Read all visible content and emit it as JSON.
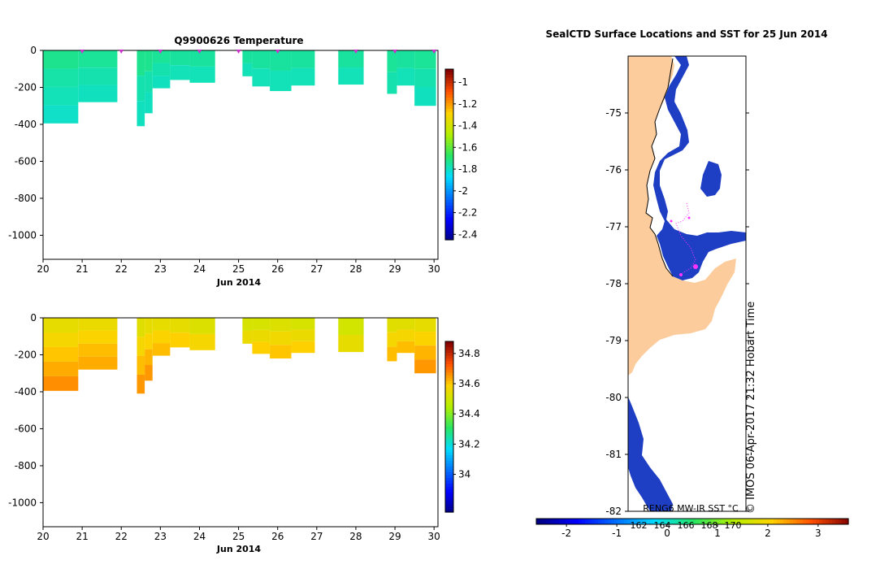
{
  "chart_data": [
    {
      "type": "heatmap",
      "title": "Q9900626  Temperature",
      "xlabel": "Jun 2014",
      "ylabel": "",
      "xlim": [
        20,
        30.1
      ],
      "ylim": [
        -1130,
        0
      ],
      "x_ticks": [
        "20",
        "21",
        "22",
        "23",
        "24",
        "25",
        "26",
        "27",
        "28",
        "29",
        "30"
      ],
      "y_ticks": [
        "0",
        "-200",
        "-400",
        "-600",
        "-800",
        "-1000"
      ],
      "colorbar": {
        "min": -2.45,
        "max": -0.88,
        "ticks": [
          "-1",
          "-1.2",
          "-1.4",
          "-1.6",
          "-1.8",
          "-2",
          "-2.2",
          "-2.4"
        ],
        "tick_values": [
          -1,
          -1.2,
          -1.4,
          -1.6,
          -1.8,
          -2,
          -2.2,
          -2.4
        ]
      },
      "profile_markers_day": [
        21.0,
        22.0,
        23.0,
        24.0,
        25.0,
        26.0,
        28.0,
        29.0,
        30.0
      ],
      "profiles": [
        {
          "x0": 20.0,
          "x1": 20.9,
          "depth": 395,
          "values": [
            -1.72,
            -1.75,
            -1.77,
            -1.79
          ]
        },
        {
          "x0": 20.9,
          "x1": 21.9,
          "depth": 280,
          "values": [
            -1.73,
            -1.76,
            -1.78
          ]
        },
        {
          "x0": 22.4,
          "x1": 22.6,
          "depth": 410,
          "values": [
            -1.72,
            -1.76,
            -1.78
          ]
        },
        {
          "x0": 22.6,
          "x1": 22.8,
          "depth": 340,
          "values": [
            -1.72,
            -1.76,
            -1.78
          ]
        },
        {
          "x0": 22.8,
          "x1": 23.25,
          "depth": 205,
          "values": [
            -1.73,
            -1.76,
            -1.78
          ]
        },
        {
          "x0": 23.25,
          "x1": 23.75,
          "depth": 160,
          "values": [
            -1.74,
            -1.77
          ]
        },
        {
          "x0": 23.75,
          "x1": 24.4,
          "depth": 175,
          "values": [
            -1.74,
            -1.77
          ]
        },
        {
          "x0": 25.1,
          "x1": 25.35,
          "depth": 140,
          "values": [
            -1.74,
            -1.77
          ]
        },
        {
          "x0": 25.35,
          "x1": 25.8,
          "depth": 195,
          "values": [
            -1.74,
            -1.77
          ]
        },
        {
          "x0": 25.8,
          "x1": 26.35,
          "depth": 220,
          "values": [
            -1.74,
            -1.77
          ]
        },
        {
          "x0": 26.35,
          "x1": 26.95,
          "depth": 190,
          "values": [
            -1.74,
            -1.77
          ]
        },
        {
          "x0": 27.55,
          "x1": 28.2,
          "depth": 185,
          "values": [
            -1.74,
            -1.77
          ]
        },
        {
          "x0": 28.8,
          "x1": 29.05,
          "depth": 235,
          "values": [
            -1.73,
            -1.76
          ]
        },
        {
          "x0": 29.05,
          "x1": 29.5,
          "depth": 190,
          "values": [
            -1.74,
            -1.77
          ]
        },
        {
          "x0": 29.5,
          "x1": 30.05,
          "depth": 300,
          "values": [
            -1.73,
            -1.76,
            -1.78
          ]
        }
      ]
    },
    {
      "type": "heatmap",
      "title": "",
      "xlabel": "Jun 2014",
      "ylabel": "",
      "xlim": [
        20,
        30.1
      ],
      "ylim": [
        -1130,
        0
      ],
      "x_ticks": [
        "20",
        "21",
        "22",
        "23",
        "24",
        "25",
        "26",
        "27",
        "28",
        "29",
        "30"
      ],
      "y_ticks": [
        "0",
        "-200",
        "-400",
        "-600",
        "-800",
        "-1000"
      ],
      "colorbar": {
        "min": 33.75,
        "max": 34.88,
        "ticks": [
          "34.8",
          "34.6",
          "34.4",
          "34.2",
          "34"
        ],
        "tick_values": [
          34.8,
          34.6,
          34.4,
          34.2,
          34.0
        ]
      },
      "profiles": [
        {
          "x0": 20.0,
          "x1": 20.9,
          "depth": 395,
          "values": [
            34.55,
            34.58,
            34.61,
            34.64,
            34.67
          ]
        },
        {
          "x0": 20.9,
          "x1": 21.9,
          "depth": 280,
          "values": [
            34.56,
            34.59,
            34.62,
            34.64
          ]
        },
        {
          "x0": 22.4,
          "x1": 22.6,
          "depth": 410,
          "values": [
            34.54,
            34.58,
            34.62,
            34.66
          ]
        },
        {
          "x0": 22.6,
          "x1": 22.8,
          "depth": 340,
          "values": [
            34.55,
            34.59,
            34.63,
            34.66
          ]
        },
        {
          "x0": 22.8,
          "x1": 23.25,
          "depth": 205,
          "values": [
            34.55,
            34.59,
            34.62
          ]
        },
        {
          "x0": 23.25,
          "x1": 23.75,
          "depth": 160,
          "values": [
            34.55,
            34.6
          ]
        },
        {
          "x0": 23.75,
          "x1": 24.4,
          "depth": 175,
          "values": [
            34.53,
            34.58
          ]
        },
        {
          "x0": 25.1,
          "x1": 25.35,
          "depth": 140,
          "values": [
            34.52,
            34.56
          ]
        },
        {
          "x0": 25.35,
          "x1": 25.8,
          "depth": 195,
          "values": [
            34.52,
            34.56,
            34.6
          ]
        },
        {
          "x0": 25.8,
          "x1": 26.35,
          "depth": 220,
          "values": [
            34.53,
            34.57,
            34.61
          ]
        },
        {
          "x0": 26.35,
          "x1": 26.95,
          "depth": 190,
          "values": [
            34.52,
            34.56,
            34.6
          ]
        },
        {
          "x0": 27.55,
          "x1": 28.2,
          "depth": 185,
          "values": [
            34.51,
            34.55
          ]
        },
        {
          "x0": 28.8,
          "x1": 29.05,
          "depth": 235,
          "values": [
            34.54,
            34.58,
            34.62
          ]
        },
        {
          "x0": 29.05,
          "x1": 29.5,
          "depth": 190,
          "values": [
            34.54,
            34.58,
            34.62
          ]
        },
        {
          "x0": 29.5,
          "x1": 30.05,
          "depth": 300,
          "values": [
            34.55,
            34.59,
            34.63,
            34.66
          ]
        }
      ]
    },
    {
      "type": "map",
      "title": "SealCTD Surface Locations and SST for 25 Jun 2014",
      "ylim": [
        -82,
        -74
      ],
      "y_ticks": [
        "-75",
        "-76",
        "-77",
        "-78",
        "-79",
        "-80",
        "-81",
        "-82"
      ],
      "colorbar": {
        "label": "RENG6 MW-IR SST °C",
        "min": -2.6,
        "max": 3.6,
        "ticks": [
          "-2",
          "-1",
          "0",
          "1",
          "2",
          "3"
        ],
        "tick_values": [
          -2,
          -1,
          0,
          1,
          2,
          3
        ]
      },
      "overlay_scale_ticks": [
        "162",
        "164",
        "166",
        "168",
        "170"
      ],
      "side_label": "© IMOS 06-Apr-2017 21:32 Hobart Time",
      "ship_track_lat": [
        -77.72,
        -77.66,
        -77.75,
        -77.9
      ]
    }
  ],
  "colors": {
    "land": "#fccc9c",
    "ocean_cold": "#1a3cc0",
    "track": "#ff33ff",
    "marker": "#cc33cc"
  }
}
